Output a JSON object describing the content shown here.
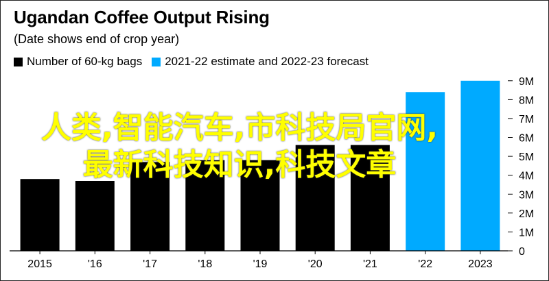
{
  "header": {
    "title": "Ugandan Coffee Output Rising",
    "subtitle": "(Date shows end of crop year)"
  },
  "legend": [
    {
      "label": "Number of 60-kg bags",
      "color": "#000000"
    },
    {
      "label": "2021-22 estimate and 2022-23 forecast",
      "color": "#00aaff"
    }
  ],
  "watermark": {
    "line1": "人类,智能汽车,市科技局官网,",
    "line2": "最新科技知识,科技文章"
  },
  "chart_data": {
    "type": "bar",
    "categories": [
      "2015",
      "'16",
      "'17",
      "'18",
      "'19",
      "'20",
      "'21",
      "'22",
      "2023"
    ],
    "values": [
      3.8,
      3.7,
      4.7,
      4.8,
      4.8,
      5.6,
      5.6,
      8.4,
      9.0
    ],
    "colors": [
      "#000000",
      "#000000",
      "#000000",
      "#000000",
      "#000000",
      "#000000",
      "#000000",
      "#00aaff",
      "#00aaff"
    ],
    "ylim": [
      0,
      9.5
    ],
    "yticks": [
      0,
      1,
      2,
      3,
      4,
      5,
      6,
      7,
      8,
      9
    ],
    "ytick_labels": [
      "0",
      "1M",
      "2M",
      "3M",
      "4M",
      "5M",
      "6M",
      "7M",
      "8M",
      "9M"
    ],
    "y_axis_side": "right",
    "grid": false
  }
}
